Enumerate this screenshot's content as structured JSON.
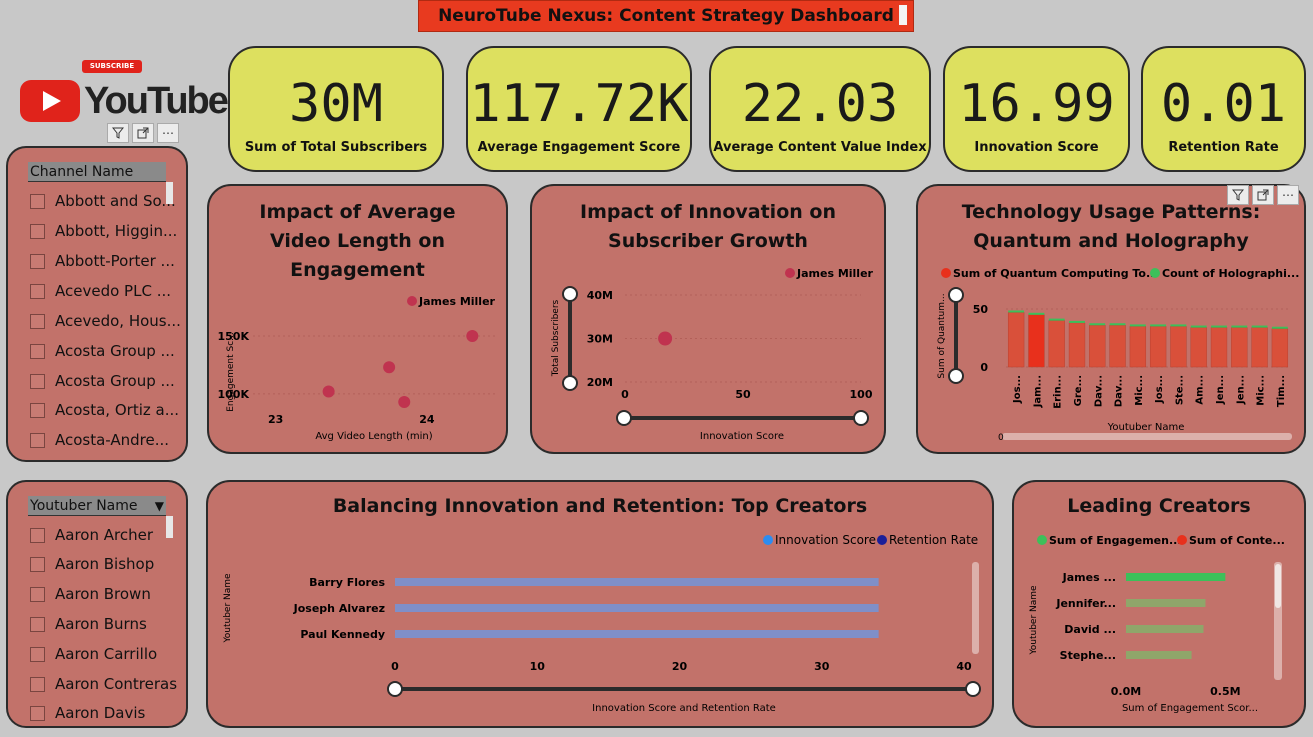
{
  "header": {
    "title": "NeuroTube Nexus: Content Strategy Dashboard"
  },
  "logo": {
    "text": "YouTube",
    "subscribe_label": "SUBSCRIBE"
  },
  "kpis": [
    {
      "value": "30M",
      "label": "Sum of Total Subscribers"
    },
    {
      "value": "117.72K",
      "label": "Average Engagement Score"
    },
    {
      "value": "22.03",
      "label": "Average Content Value Index"
    },
    {
      "value": "16.99",
      "label": "Innovation Score"
    },
    {
      "value": "0.01",
      "label": "Retention Rate"
    }
  ],
  "channel_slicer": {
    "header": "Channel Name",
    "items": [
      "Abbott and So...",
      "Abbott, Higgin...",
      "Abbott-Porter ...",
      "Acevedo PLC ...",
      "Acevedo, Hous...",
      "Acosta Group ...",
      "Acosta Group ...",
      "Acosta, Ortiz a...",
      "Acosta-Andre..."
    ]
  },
  "youtuber_slicer": {
    "header": "Youtuber Name",
    "items": [
      "Aaron Archer",
      "Aaron Bishop",
      "Aaron Brown",
      "Aaron Burns",
      "Aaron Carrillo",
      "Aaron Contreras",
      "Aaron Davis"
    ]
  },
  "colors": {
    "kpi_bg": "#dde05f",
    "card_bg": "#c2726a",
    "title_bg": "#e83a1f",
    "dot": "#c0334f",
    "bar": "#d9503a",
    "bar_highlight": "#e8301c",
    "hbar_innovation": "#7f8fc8",
    "green": "#3cc05a",
    "olive": "#8fa66a"
  },
  "toolbar_icons": [
    "filter-icon",
    "focus-mode-icon",
    "more-options-icon"
  ],
  "chart_data": [
    {
      "type": "scatter",
      "title": "Impact of Average Video Length on Engagement",
      "xlabel": "Avg Video Length (min)",
      "ylabel": "Engagement Sc...",
      "legend": [
        "James Miller"
      ],
      "x_ticks": [
        "23",
        "24"
      ],
      "y_ticks": [
        "100K",
        "150K"
      ],
      "xlim": [
        22.85,
        24.45
      ],
      "ylim": [
        80000,
        175000
      ],
      "points": [
        {
          "x": 23.35,
          "y": 102000
        },
        {
          "x": 23.75,
          "y": 123000
        },
        {
          "x": 23.85,
          "y": 93000
        },
        {
          "x": 24.3,
          "y": 150000
        }
      ]
    },
    {
      "type": "scatter",
      "title": "Impact of Innovation on Subscriber Growth",
      "xlabel": "Innovation Score",
      "ylabel": "Total Subscribers",
      "legend": [
        "James Miller"
      ],
      "x_ticks": [
        "0",
        "50",
        "100"
      ],
      "y_ticks": [
        "20M",
        "30M",
        "40M"
      ],
      "xlim": [
        0,
        100
      ],
      "ylim": [
        20000000,
        40000000
      ],
      "points": [
        {
          "x": 17,
          "y": 30000000
        }
      ]
    },
    {
      "type": "bar",
      "title": "Technology Usage Patterns: Quantum and Holography",
      "xlabel": "Youtuber Name",
      "ylabel": "Sum of Quantum...",
      "legend": [
        "Sum of Quantum Computing To...",
        "Count of Holographi..."
      ],
      "categories": [
        "Jos...",
        "Jam...",
        "Erin...",
        "Gre...",
        "Dav...",
        "Dav...",
        "Mic...",
        "Jos...",
        "Ste...",
        "Am...",
        "Jen...",
        "Jen...",
        "Mic...",
        "Tim..."
      ],
      "values": [
        47,
        45,
        40,
        38,
        36,
        36,
        35,
        35,
        35,
        34,
        34,
        34,
        34,
        33
      ],
      "highlight_index": 1,
      "y_ticks": [
        "0",
        "50"
      ],
      "ylim": [
        0,
        60
      ],
      "scroll_label": "0"
    },
    {
      "type": "bar",
      "orientation": "horizontal",
      "title": "Balancing Innovation and Retention: Top Creators",
      "xlabel": "Innovation Score and Retention Rate",
      "ylabel": "Youtuber Name",
      "legend": [
        "Innovation Score",
        "Retention Rate"
      ],
      "categories": [
        "Barry Flores",
        "Joseph Alvarez",
        "Paul Kennedy"
      ],
      "series": [
        {
          "name": "Innovation Score",
          "values": [
            34,
            34,
            34
          ]
        },
        {
          "name": "Retention Rate",
          "values": [
            0.01,
            0.01,
            0.01
          ]
        }
      ],
      "x_ticks": [
        "0",
        "10",
        "20",
        "30",
        "40"
      ],
      "xlim": [
        0,
        40
      ]
    },
    {
      "type": "bar",
      "orientation": "horizontal",
      "title": "Leading Creators",
      "xlabel": "Sum of Engagement Scor...",
      "ylabel": "Youtuber Name",
      "legend": [
        "Sum of Engagemen...",
        "Sum of Conte..."
      ],
      "categories": [
        "James ...",
        "Jennifer...",
        "David ...",
        "Stephe..."
      ],
      "series": [
        {
          "name": "Sum of Engagement Score",
          "values": [
            0.5,
            0.4,
            0.39,
            0.33
          ]
        }
      ],
      "x_ticks": [
        "0.0M",
        "0.5M"
      ],
      "xlim": [
        0,
        0.75
      ]
    }
  ]
}
